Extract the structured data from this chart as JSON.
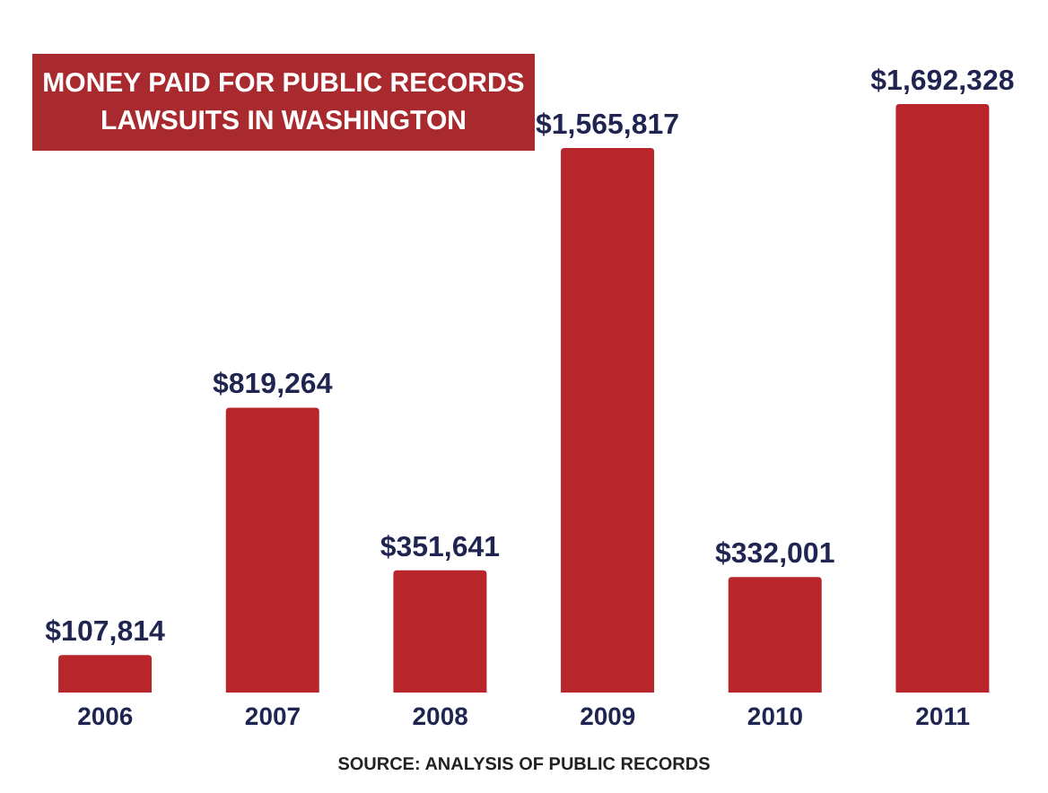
{
  "chart_data": {
    "type": "bar",
    "title": "MONEY PAID FOR PUBLIC RECORDS LAWSUITS IN WASHINGTON",
    "categories": [
      "2006",
      "2007",
      "2008",
      "2009",
      "2010",
      "2011"
    ],
    "values": [
      107814,
      819264,
      351641,
      1565817,
      332001,
      1692328
    ],
    "value_labels": [
      "$107,814",
      "$819,264",
      "$351,641",
      "$1,565,817",
      "$332,001",
      "$1,692,328"
    ],
    "color": "#b8262b",
    "annotations": [
      "SOURCE: ANALYSIS OF PUBLIC RECORDS"
    ]
  }
}
